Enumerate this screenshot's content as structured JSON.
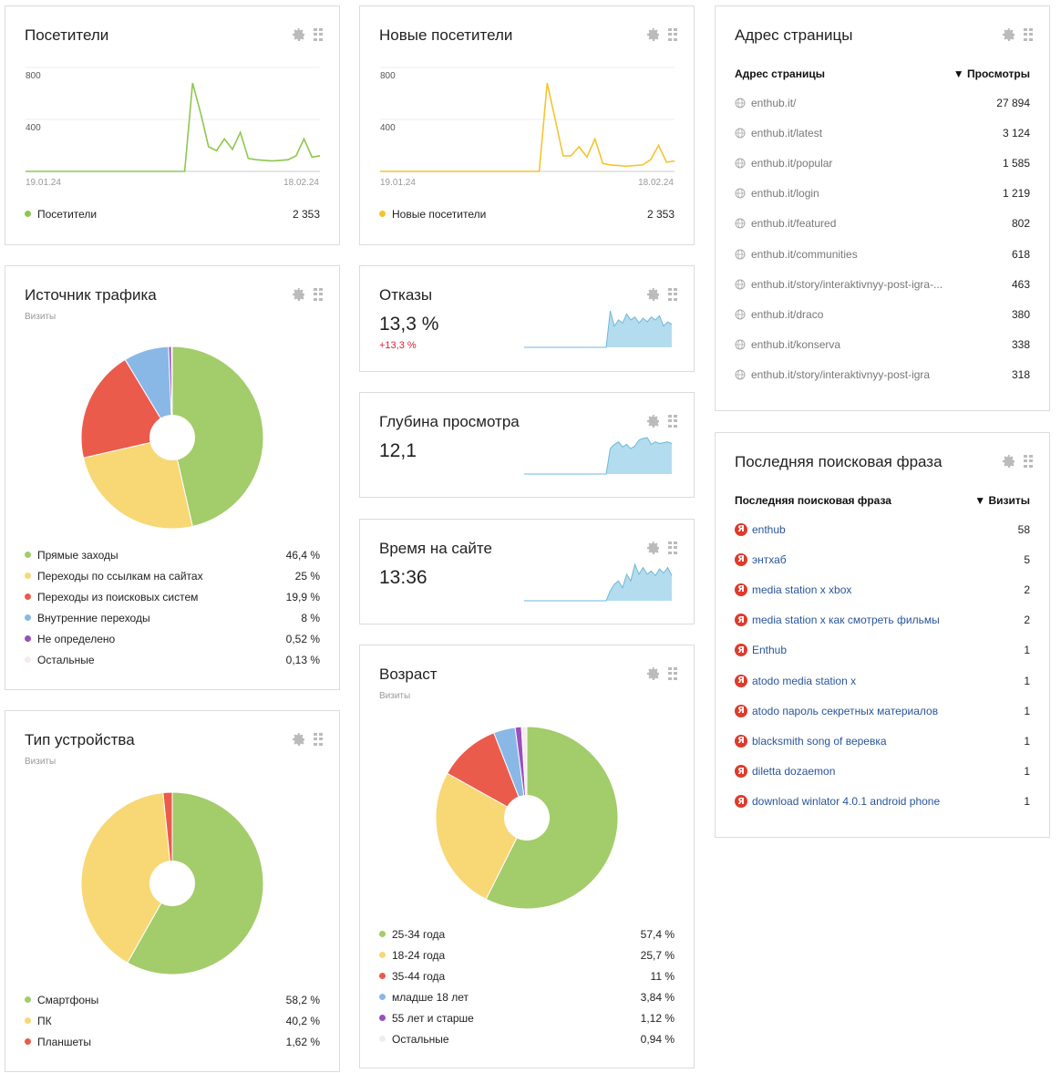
{
  "visitors": {
    "title": "Посетители",
    "y_ticks": [
      "800",
      "400"
    ],
    "date_start": "19.01.24",
    "date_end": "18.02.24",
    "legend_label": "Посетители",
    "total": "2 353",
    "color": "#8dc74f"
  },
  "new_visitors": {
    "title": "Новые посетители",
    "y_ticks": [
      "800",
      "400"
    ],
    "date_start": "19.01.24",
    "date_end": "18.02.24",
    "legend_label": "Новые посетители",
    "total": "2 353",
    "color": "#f4c430"
  },
  "bounce": {
    "title": "Отказы",
    "value": "13,3 %",
    "delta": "+13,3 %"
  },
  "depth": {
    "title": "Глубина просмотра",
    "value": "12,1"
  },
  "time": {
    "title": "Время на сайте",
    "value": "13:36"
  },
  "traffic": {
    "title": "Источник трафика",
    "subtitle": "Визиты",
    "items": [
      {
        "label": "Прямые заходы",
        "value": "46,4 %",
        "color": "#a3cc6a"
      },
      {
        "label": "Переходы по ссылкам на сайтах",
        "value": "25 %",
        "color": "#f8d775"
      },
      {
        "label": "Переходы из поисковых систем",
        "value": "19,9 %",
        "color": "#ea5b4c"
      },
      {
        "label": "Внутренние переходы",
        "value": "8 %",
        "color": "#8ab8e6"
      },
      {
        "label": "Не определено",
        "value": "0,52 %",
        "color": "#9b4fbd"
      },
      {
        "label": "Остальные",
        "value": "0,13 %",
        "color": "#f3ecec"
      }
    ]
  },
  "device": {
    "title": "Тип устройства",
    "subtitle": "Визиты",
    "items": [
      {
        "label": "Смартфоны",
        "value": "58,2 %",
        "color": "#a3cc6a"
      },
      {
        "label": "ПК",
        "value": "40,2 %",
        "color": "#f8d775"
      },
      {
        "label": "Планшеты",
        "value": "1,62 %",
        "color": "#ea5b4c"
      }
    ]
  },
  "age": {
    "title": "Возраст",
    "subtitle": "Визиты",
    "items": [
      {
        "label": "25-34 года",
        "value": "57,4 %",
        "color": "#a3cc6a"
      },
      {
        "label": "18-24 года",
        "value": "25,7 %",
        "color": "#f8d775"
      },
      {
        "label": "35-44 года",
        "value": "11 %",
        "color": "#ea5b4c"
      },
      {
        "label": "младше 18 лет",
        "value": "3,84 %",
        "color": "#8ab8e6"
      },
      {
        "label": "55 лет и старше",
        "value": "1,12 %",
        "color": "#9b4fbd"
      },
      {
        "label": "Остальные",
        "value": "0,94 %",
        "color": "#f3ecec"
      }
    ]
  },
  "pages": {
    "title": "Адрес страницы",
    "col1": "Адрес страницы",
    "col2": "▼ Просмотры",
    "rows": [
      {
        "url": "enthub.it/",
        "views": "27 894"
      },
      {
        "url": "enthub.it/latest",
        "views": "3 124"
      },
      {
        "url": "enthub.it/popular",
        "views": "1 585"
      },
      {
        "url": "enthub.it/login",
        "views": "1 219"
      },
      {
        "url": "enthub.it/featured",
        "views": "802"
      },
      {
        "url": "enthub.it/communities",
        "views": "618"
      },
      {
        "url": "enthub.it/story/interaktivnyy-post-igra-...",
        "views": "463"
      },
      {
        "url": "enthub.it/draco",
        "views": "380"
      },
      {
        "url": "enthub.it/konserva",
        "views": "338"
      },
      {
        "url": "enthub.it/story/interaktivnyy-post-igra",
        "views": "318"
      }
    ]
  },
  "search": {
    "title": "Последняя поисковая фраза",
    "col1": "Последняя поисковая фраза",
    "col2": "▼ Визиты",
    "icon_glyph": "Я",
    "rows": [
      {
        "phrase": "enthub",
        "visits": "58"
      },
      {
        "phrase": "энтхаб",
        "visits": "5"
      },
      {
        "phrase": "media station x xbox",
        "visits": "2"
      },
      {
        "phrase": "media station x как смотреть фильмы",
        "visits": "2"
      },
      {
        "phrase": "Enthub",
        "visits": "1"
      },
      {
        "phrase": "atodo media station x",
        "visits": "1"
      },
      {
        "phrase": "atodo пароль секретных материалов",
        "visits": "1"
      },
      {
        "phrase": "blacksmith song of веревка",
        "visits": "1"
      },
      {
        "phrase": "diletta dozaemon",
        "visits": "1"
      },
      {
        "phrase": "download winlator 4.0.1 android phone",
        "visits": "1"
      }
    ]
  },
  "chart_data": [
    {
      "type": "line",
      "title": "Посетители",
      "ylim": [
        0,
        1000
      ],
      "series": [
        {
          "name": "Посетители",
          "values": [
            0,
            0,
            0,
            0,
            0,
            0,
            0,
            0,
            0,
            0,
            0,
            0,
            0,
            0,
            0,
            0,
            0,
            0,
            0,
            0,
            0,
            680,
            450,
            190,
            160,
            250,
            170,
            300,
            100,
            90,
            85,
            80,
            85,
            90,
            120,
            250,
            110,
            120
          ]
        }
      ]
    },
    {
      "type": "line",
      "title": "Новые посетители",
      "ylim": [
        0,
        1000
      ],
      "series": [
        {
          "name": "Новые посетители",
          "values": [
            0,
            0,
            0,
            0,
            0,
            0,
            0,
            0,
            0,
            0,
            0,
            0,
            0,
            0,
            0,
            0,
            0,
            0,
            0,
            0,
            0,
            680,
            400,
            120,
            120,
            190,
            110,
            250,
            60,
            50,
            45,
            40,
            45,
            50,
            90,
            200,
            70,
            80
          ]
        }
      ]
    },
    {
      "type": "pie",
      "title": "Источник трафика",
      "categories": [
        "Прямые заходы",
        "Переходы по ссылкам на сайтах",
        "Переходы из поисковых систем",
        "Внутренние переходы",
        "Не определено",
        "Остальные"
      ],
      "values": [
        46.4,
        25,
        19.9,
        8,
        0.52,
        0.13
      ]
    },
    {
      "type": "pie",
      "title": "Тип устройства",
      "categories": [
        "Смартфоны",
        "ПК",
        "Планшеты"
      ],
      "values": [
        58.2,
        40.2,
        1.62
      ]
    },
    {
      "type": "pie",
      "title": "Возраст",
      "categories": [
        "25-34 года",
        "18-24 года",
        "35-44 года",
        "младше 18 лет",
        "55 лет и старше",
        "Остальные"
      ],
      "values": [
        57.4,
        25.7,
        11,
        3.84,
        1.12,
        0.94
      ]
    },
    {
      "type": "area",
      "title": "Отказы",
      "values": [
        0,
        0,
        0,
        0,
        0,
        0,
        0,
        0,
        0,
        0,
        0,
        0,
        0,
        0,
        0,
        0,
        0,
        0,
        0,
        0,
        0,
        60,
        35,
        45,
        40,
        55,
        45,
        50,
        40,
        48,
        42,
        50,
        45,
        52,
        35,
        42,
        38
      ]
    },
    {
      "type": "area",
      "title": "Глубина просмотра",
      "values": [
        0,
        0,
        0,
        0,
        0,
        0,
        0,
        0,
        0,
        0,
        0,
        0,
        0,
        0,
        0,
        0,
        0,
        0,
        0,
        0,
        0,
        30,
        35,
        38,
        32,
        35,
        30,
        33,
        40,
        42,
        43,
        35,
        38,
        36,
        37,
        38,
        36
      ]
    },
    {
      "type": "area",
      "title": "Время на сайте",
      "values": [
        0,
        0,
        0,
        0,
        0,
        0,
        0,
        0,
        0,
        0,
        0,
        0,
        0,
        0,
        0,
        0,
        0,
        0,
        0,
        0,
        0,
        15,
        25,
        30,
        20,
        40,
        30,
        55,
        40,
        50,
        40,
        45,
        38,
        48,
        42,
        50,
        38
      ]
    }
  ]
}
